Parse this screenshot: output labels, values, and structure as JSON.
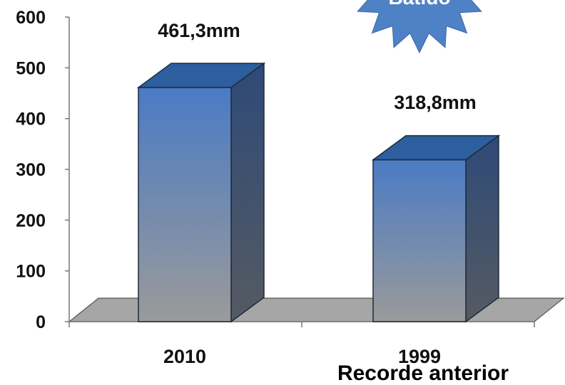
{
  "chart_data": {
    "type": "bar",
    "categories": [
      "2010",
      "1999"
    ],
    "values": [
      461.3,
      318.8
    ],
    "data_labels": [
      "461,3mm",
      "318,8mm"
    ],
    "title": "",
    "xlabel": "",
    "ylabel": "",
    "ylim": [
      0,
      600
    ],
    "y_ticks": [
      "0",
      "100",
      "200",
      "300",
      "400",
      "500",
      "600"
    ],
    "style": "3d-columns",
    "grid": false,
    "legend": "none",
    "colors": {
      "bar_top": "#4a7bc4",
      "bar_bottom": "#9a9a9a",
      "bar_side": "#2e4a78",
      "bar_cap": "#2d5e9e",
      "floor": "#a6a6a6",
      "badge": "#4f81c6"
    }
  },
  "badge": {
    "text": "Batido"
  },
  "note": {
    "text": "Recorde anterior"
  }
}
